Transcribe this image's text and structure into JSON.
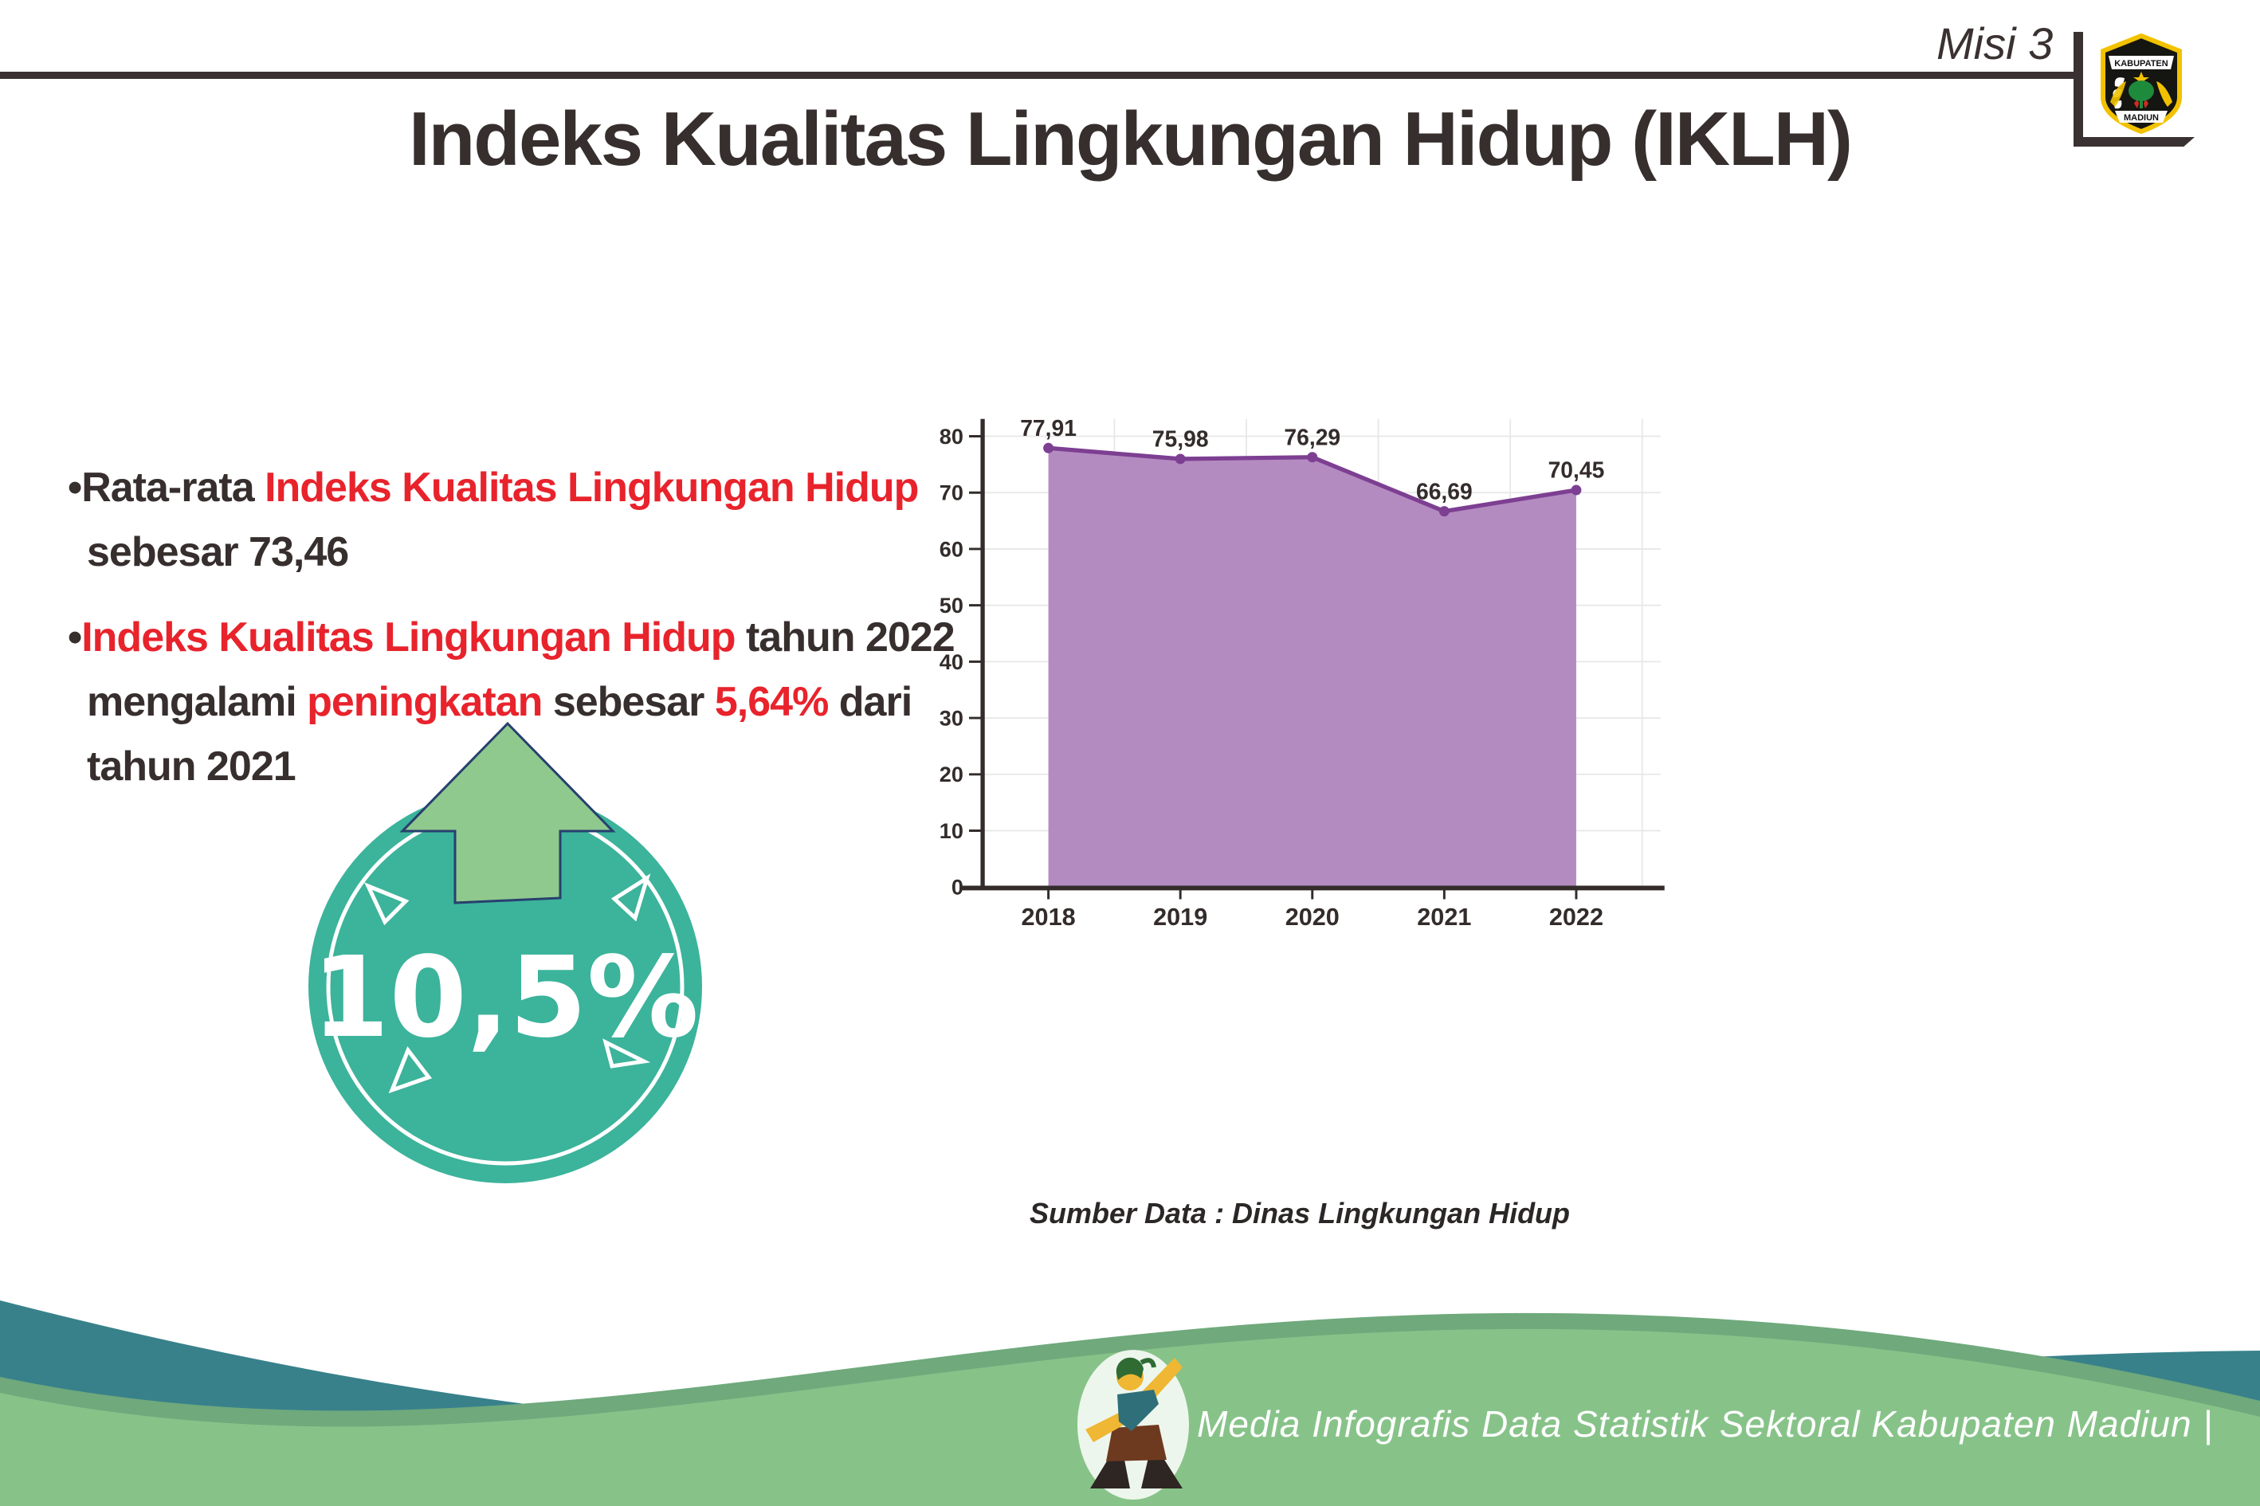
{
  "header": {
    "misi": "Misi 3",
    "title": "Indeks Kualitas Lingkungan Hidup (IKLH)",
    "logo_top": "KABUPATEN",
    "logo_bottom": "MADIUN"
  },
  "bullets": [
    {
      "lines": [
        [
          {
            "text": "•Rata-rata ",
            "color": "dark"
          },
          {
            "text": "Indeks Kualitas Lingkungan Hidup",
            "color": "red"
          }
        ],
        [
          {
            "text": "sebesar 73,46",
            "color": "dark"
          }
        ]
      ]
    },
    {
      "lines": [
        [
          {
            "text": "•",
            "color": "dark"
          },
          {
            "text": "Indeks Kualitas Lingkungan Hidup",
            "color": "red"
          },
          {
            "text": " tahun 2022",
            "color": "dark"
          }
        ],
        [
          {
            "text": "mengalami ",
            "color": "dark"
          },
          {
            "text": "peningkatan",
            "color": "red"
          },
          {
            "text": " sebesar ",
            "color": "dark"
          },
          {
            "text": "5,64%",
            "color": "red"
          },
          {
            "text": " dari",
            "color": "dark"
          }
        ],
        [
          {
            "text": "tahun 2021",
            "color": "dark"
          }
        ]
      ]
    }
  ],
  "badge": {
    "percent": "10,5%"
  },
  "chart_data": {
    "type": "area",
    "categories": [
      "2018",
      "2019",
      "2020",
      "2021",
      "2022"
    ],
    "values": [
      77.91,
      75.98,
      76.29,
      66.69,
      70.45
    ],
    "value_labels": [
      "77,91",
      "75,98",
      "76,29",
      "66,69",
      "70,45"
    ],
    "y_ticks": [
      0,
      10,
      20,
      30,
      40,
      50,
      60,
      70,
      80
    ],
    "ylim": [
      0,
      80
    ],
    "grid": true,
    "legend": "none",
    "title": "",
    "xlabel": "",
    "ylabel": "",
    "source": "Sumber Data : Dinas Lingkungan Hidup"
  },
  "footer": {
    "credit": "Media Infografis Data Statistik Sektoral Kabupaten Madiun |"
  },
  "colors": {
    "ink": "#362F2D",
    "red": "#E8232C",
    "rule": "#3A3231",
    "chart_line": "#7D3F92",
    "chart_fill": "#B48BC1",
    "grid": "#E7E7E7",
    "axis": "#332C2B",
    "badge_teal": "#3CB39B",
    "arrow_green": "#8FC98E",
    "arrow_outline": "#27406E",
    "wave_teal": "#38818B",
    "wave_rim": "#6FA97C",
    "wave_green": "#87C389",
    "logo_gold": "#F2C200"
  }
}
